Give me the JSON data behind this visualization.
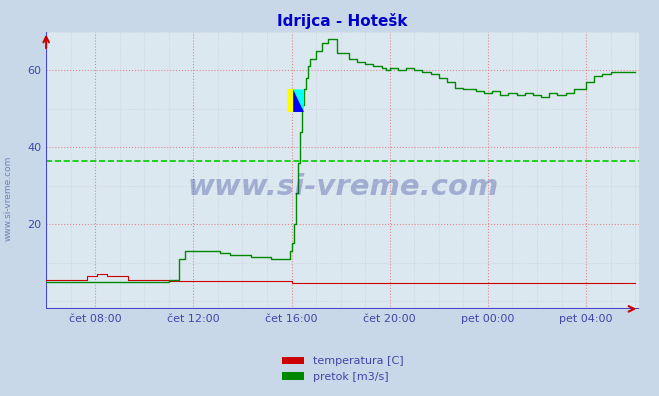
{
  "title": "Idrijca - Hotešk",
  "title_color": "#0000cc",
  "bg_color": "#c8d8e8",
  "plot_bg_color": "#dce8f0",
  "outer_bg_color": "#c8d8e8",
  "grid_color_major": "#e08080",
  "grid_color_minor": "#c8c8d8",
  "tick_color": "#4444aa",
  "xlabel_color": "#4444aa",
  "xticklabels": [
    "čet 08:00",
    "čet 12:00",
    "čet 16:00",
    "čet 20:00",
    "pet 00:00",
    "pet 04:00"
  ],
  "xtick_positions": [
    24,
    72,
    120,
    168,
    216,
    264
  ],
  "yticks": [
    20,
    40,
    60
  ],
  "ylim": [
    -2,
    70
  ],
  "xlim": [
    0,
    290
  ],
  "avg_line_value": 36.5,
  "avg_line_color": "#00cc00",
  "temp_color": "#cc0000",
  "flow_color": "#008800",
  "axis_color": "#4444cc",
  "arrow_color": "#cc0000",
  "watermark_color": "#1a2a8a",
  "side_text": "www.si-vreme.com",
  "legend_temp": "temperatura [C]",
  "legend_flow": "pretok [m3/s]"
}
